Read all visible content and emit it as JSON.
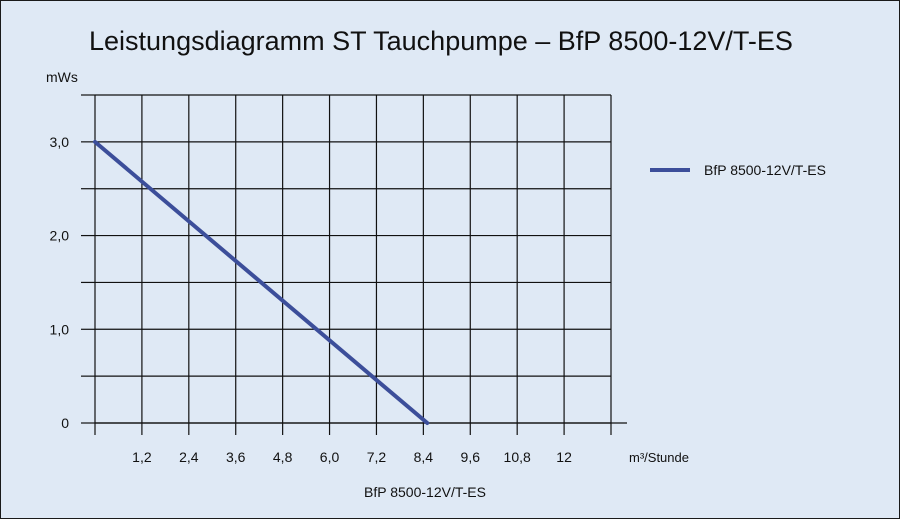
{
  "chart_data": {
    "type": "line",
    "title": "Leistungsdiagramm ST Tauchpumpe – BfP 8500-12V/T-ES",
    "ylabel": "mWs",
    "xlabel": "BfP 8500-12V/T-ES",
    "x_unit_label": "m³/Stunde",
    "x_ticks": [
      {
        "value": 1.2,
        "label": "1,2"
      },
      {
        "value": 2.4,
        "label": "2,4"
      },
      {
        "value": 3.6,
        "label": "3,6"
      },
      {
        "value": 4.8,
        "label": "4,8"
      },
      {
        "value": 6.0,
        "label": "6,0"
      },
      {
        "value": 7.2,
        "label": "7,2"
      },
      {
        "value": 8.4,
        "label": "8,4"
      },
      {
        "value": 9.6,
        "label": "9,6"
      },
      {
        "value": 10.8,
        "label": "10,8"
      },
      {
        "value": 12,
        "label": "12"
      }
    ],
    "y_ticks": [
      {
        "value": 0,
        "label": "0"
      },
      {
        "value": 1.0,
        "label": "1,0"
      },
      {
        "value": 2.0,
        "label": "2,0"
      },
      {
        "value": 3.0,
        "label": "3,0"
      }
    ],
    "xlim": [
      0,
      13.2
    ],
    "ylim": [
      0,
      3.5
    ],
    "grid": true,
    "legend_position": "right",
    "series": [
      {
        "name": "BfP 8500-12V/T-ES",
        "color": "#3c4e9a",
        "x": [
          0,
          8.5
        ],
        "y": [
          3.0,
          0
        ]
      }
    ]
  }
}
